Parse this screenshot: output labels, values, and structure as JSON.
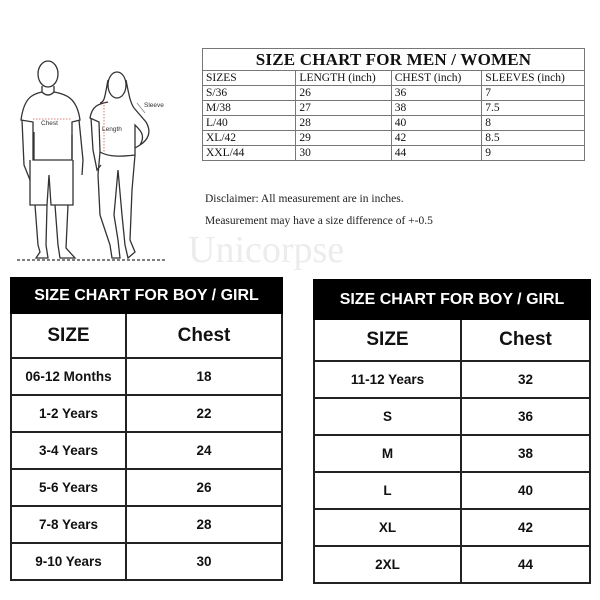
{
  "adult_chart": {
    "title": "SIZE CHART FOR MEN / WOMEN",
    "headers": [
      "SIZES",
      "LENGTH (inch)",
      "CHEST (inch)",
      "SLEEVES (inch)"
    ],
    "rows": [
      [
        "S/36",
        "26",
        "36",
        "7"
      ],
      [
        "M/38",
        "27",
        "38",
        "7.5"
      ],
      [
        "L/40",
        "28",
        "40",
        "8"
      ],
      [
        "XL/42",
        "29",
        "42",
        "8.5"
      ],
      [
        "XXL/44",
        "30",
        "44",
        "9"
      ]
    ]
  },
  "illustration": {
    "chest_label": "Chest",
    "length_label": "Length",
    "sleeve_label": "Sleeve"
  },
  "disclaimer": {
    "line1": "Disclaimer: All measurement are in inches.",
    "line2": "Measurement may have a size difference of +-0.5"
  },
  "watermark": "Unicorpse",
  "kids_chart_left": {
    "title": "SIZE CHART FOR BOY / GIRL",
    "headers": [
      "SIZE",
      "Chest"
    ],
    "rows": [
      [
        "06-12 Months",
        "18"
      ],
      [
        "1-2 Years",
        "22"
      ],
      [
        "3-4 Years",
        "24"
      ],
      [
        "5-6 Years",
        "26"
      ],
      [
        "7-8 Years",
        "28"
      ],
      [
        "9-10 Years",
        "30"
      ]
    ]
  },
  "kids_chart_right": {
    "title": "SIZE CHART FOR BOY / GIRL",
    "headers": [
      "SIZE",
      "Chest"
    ],
    "rows": [
      [
        "11-12 Years",
        "32"
      ],
      [
        "S",
        "36"
      ],
      [
        "M",
        "38"
      ],
      [
        "L",
        "40"
      ],
      [
        "XL",
        "42"
      ],
      [
        "2XL",
        "44"
      ]
    ]
  }
}
